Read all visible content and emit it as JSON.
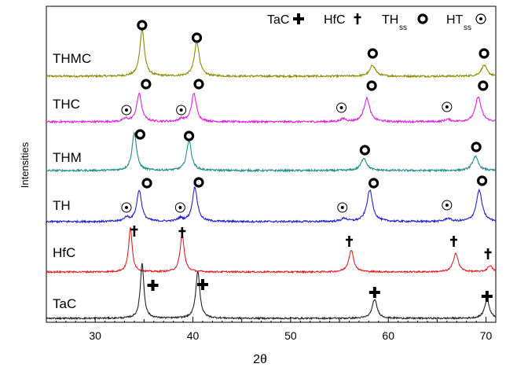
{
  "chart_data": {
    "type": "line",
    "xlabel": "2θ",
    "ylabel": "Intensities",
    "xlim": [
      25,
      71
    ],
    "x_ticks": [
      30,
      40,
      50,
      60,
      70
    ],
    "grid": false,
    "legend": {
      "position": "top-right",
      "entries": [
        {
          "label": "TaC",
          "sub": "",
          "marker": "cross"
        },
        {
          "label": "HfC",
          "sub": "",
          "marker": "dagger"
        },
        {
          "label": "TH",
          "sub": "ss",
          "marker": "ring"
        },
        {
          "label": "HT",
          "sub": "ss",
          "marker": "dotted-circle"
        }
      ]
    },
    "series": [
      {
        "name": "THMC",
        "color": "#8B8B00",
        "noise": 0.12,
        "peaks": [
          [
            34.8,
            3.0,
            0.28
          ],
          [
            40.4,
            2.2,
            0.3
          ],
          [
            58.4,
            0.7,
            0.35
          ],
          [
            69.8,
            0.7,
            0.35
          ]
        ],
        "markers": [
          {
            "x": 34.8,
            "type": "ring"
          },
          {
            "x": 40.4,
            "type": "ring"
          },
          {
            "x": 58.4,
            "type": "ring"
          },
          {
            "x": 69.8,
            "type": "ring"
          }
        ]
      },
      {
        "name": "THC",
        "color": "#DD22DD",
        "noise": 0.12,
        "peaks": [
          [
            33.1,
            0.18,
            0.3
          ],
          [
            34.5,
            1.8,
            0.3
          ],
          [
            38.8,
            0.16,
            0.3
          ],
          [
            40.1,
            1.8,
            0.3
          ],
          [
            55.4,
            0.18,
            0.35
          ],
          [
            57.8,
            1.5,
            0.35
          ],
          [
            66.1,
            0.15,
            0.35
          ],
          [
            69.2,
            1.6,
            0.35
          ]
        ],
        "markers": [
          {
            "x": 33.2,
            "type": "dotted-circle"
          },
          {
            "x": 35.2,
            "type": "ring"
          },
          {
            "x": 38.8,
            "type": "dotted-circle"
          },
          {
            "x": 40.6,
            "type": "ring"
          },
          {
            "x": 55.2,
            "type": "dotted-circle"
          },
          {
            "x": 58.3,
            "type": "ring"
          },
          {
            "x": 66.0,
            "type": "dotted-circle"
          },
          {
            "x": 69.7,
            "type": "ring"
          }
        ]
      },
      {
        "name": "THM",
        "color": "#1E8C8C",
        "noise": 0.12,
        "peaks": [
          [
            34.0,
            2.4,
            0.28
          ],
          [
            39.6,
            1.9,
            0.3
          ],
          [
            57.5,
            0.8,
            0.35
          ],
          [
            68.9,
            0.9,
            0.35
          ]
        ],
        "markers": [
          {
            "x": 34.6,
            "type": "ring"
          },
          {
            "x": 39.6,
            "type": "ring"
          },
          {
            "x": 57.6,
            "type": "ring"
          },
          {
            "x": 69.0,
            "type": "ring"
          }
        ]
      },
      {
        "name": "TH",
        "color": "#2222CC",
        "noise": 0.12,
        "peaks": [
          [
            33.2,
            0.25,
            0.3
          ],
          [
            34.5,
            2.0,
            0.3
          ],
          [
            38.7,
            0.2,
            0.3
          ],
          [
            40.2,
            2.2,
            0.3
          ],
          [
            55.5,
            0.2,
            0.35
          ],
          [
            58.1,
            2.0,
            0.35
          ],
          [
            66.1,
            0.2,
            0.35
          ],
          [
            69.3,
            2.0,
            0.35
          ]
        ],
        "markers": [
          {
            "x": 33.2,
            "type": "dotted-circle"
          },
          {
            "x": 35.3,
            "type": "ring"
          },
          {
            "x": 38.7,
            "type": "dotted-circle"
          },
          {
            "x": 40.6,
            "type": "ring"
          },
          {
            "x": 55.3,
            "type": "dotted-circle"
          },
          {
            "x": 58.5,
            "type": "ring"
          },
          {
            "x": 66.0,
            "type": "dotted-circle"
          },
          {
            "x": 69.6,
            "type": "ring"
          }
        ]
      },
      {
        "name": "HfC",
        "color": "#DD2222",
        "noise": 0.1,
        "peaks": [
          [
            33.6,
            2.8,
            0.22
          ],
          [
            38.9,
            2.4,
            0.25
          ],
          [
            56.2,
            1.4,
            0.3
          ],
          [
            66.9,
            1.2,
            0.3
          ],
          [
            70.4,
            0.4,
            0.3
          ]
        ],
        "markers": [
          {
            "x": 34.0,
            "type": "dagger"
          },
          {
            "x": 38.9,
            "type": "dagger"
          },
          {
            "x": 56.0,
            "type": "dagger"
          },
          {
            "x": 66.7,
            "type": "dagger"
          },
          {
            "x": 70.2,
            "type": "dagger"
          }
        ]
      },
      {
        "name": "TaC",
        "color": "#222222",
        "noise": 0.1,
        "peaks": [
          [
            34.8,
            3.5,
            0.22
          ],
          [
            40.5,
            3.0,
            0.25
          ],
          [
            58.6,
            1.2,
            0.3
          ],
          [
            70.1,
            1.2,
            0.3
          ]
        ],
        "markers": [
          {
            "x": 35.9,
            "type": "cross"
          },
          {
            "x": 41.0,
            "type": "cross"
          },
          {
            "x": 58.6,
            "type": "cross"
          },
          {
            "x": 70.1,
            "type": "cross"
          }
        ]
      }
    ]
  }
}
